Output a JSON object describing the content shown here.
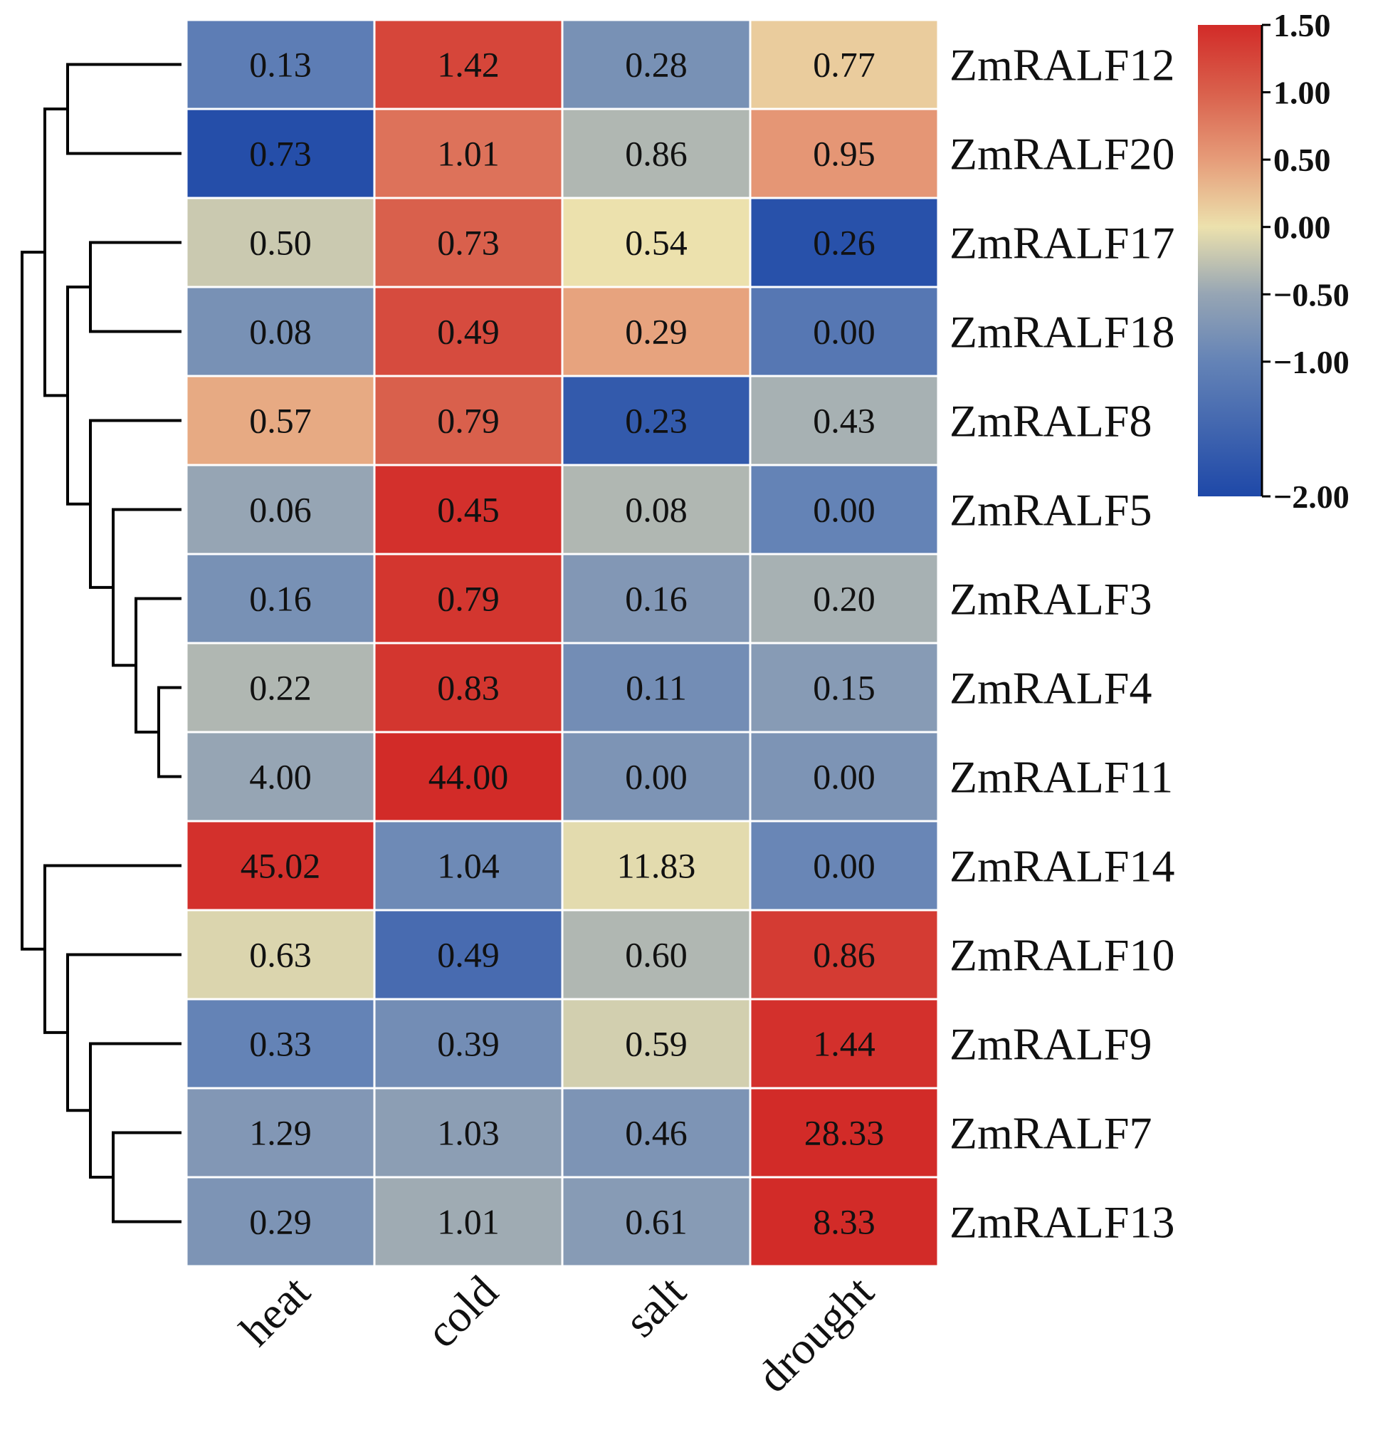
{
  "chart_data": {
    "type": "heatmap",
    "title": "",
    "xlabel": "",
    "ylabel": "",
    "columns": [
      "heat",
      "cold",
      "salt",
      "drought"
    ],
    "rows": [
      "ZmRALF12",
      "ZmRALF20",
      "ZmRALF17",
      "ZmRALF18",
      "ZmRALF8",
      "ZmRALF5",
      "ZmRALF3",
      "ZmRALF4",
      "ZmRALF11",
      "ZmRALF14",
      "ZmRALF10",
      "ZmRALF9",
      "ZmRALF7",
      "ZmRALF13"
    ],
    "cell_labels": [
      [
        "0.13",
        "1.42",
        "0.28",
        "0.77"
      ],
      [
        "0.73",
        "1.01",
        "0.86",
        "0.95"
      ],
      [
        "0.50",
        "0.73",
        "0.54",
        "0.26"
      ],
      [
        "0.08",
        "0.49",
        "0.29",
        "0.00"
      ],
      [
        "0.57",
        "0.79",
        "0.23",
        "0.43"
      ],
      [
        "0.06",
        "0.45",
        "0.08",
        "0.00"
      ],
      [
        "0.16",
        "0.79",
        "0.16",
        "0.20"
      ],
      [
        "0.22",
        "0.83",
        "0.11",
        "0.15"
      ],
      [
        "4.00",
        "44.00",
        "0.00",
        "0.00"
      ],
      [
        "45.02",
        "1.04",
        "11.83",
        "0.00"
      ],
      [
        "0.63",
        "0.49",
        "0.60",
        "0.86"
      ],
      [
        "0.33",
        "0.39",
        "0.59",
        "1.44"
      ],
      [
        "1.29",
        "1.03",
        "0.46",
        "28.33"
      ],
      [
        "0.29",
        "1.01",
        "0.61",
        "8.33"
      ]
    ],
    "color_values": [
      [
        -1.1,
        1.25,
        -0.8,
        0.15
      ],
      [
        -1.9,
        0.85,
        -0.35,
        0.55
      ],
      [
        -0.2,
        1.0,
        0.0,
        -1.85
      ],
      [
        -0.8,
        1.2,
        0.45,
        -1.2
      ],
      [
        0.4,
        1.0,
        -1.7,
        -0.4
      ],
      [
        -0.5,
        1.45,
        -0.35,
        -1.0
      ],
      [
        -0.8,
        1.4,
        -0.7,
        -0.4
      ],
      [
        -0.35,
        1.4,
        -0.85,
        -0.65
      ],
      [
        -0.5,
        1.5,
        -0.75,
        -0.75
      ],
      [
        1.45,
        -0.9,
        -0.05,
        -0.95
      ],
      [
        -0.1,
        -1.4,
        -0.35,
        1.35
      ],
      [
        -1.0,
        -0.85,
        -0.15,
        1.45
      ],
      [
        -0.7,
        -0.6,
        -0.75,
        1.5
      ],
      [
        -0.75,
        -0.45,
        -0.65,
        1.5
      ]
    ],
    "colorbar": {
      "range": [
        -2.0,
        1.5
      ],
      "ticks": [
        1.5,
        1.0,
        0.5,
        0.0,
        -0.5,
        -1.0,
        -2.0
      ],
      "tick_labels": [
        "1.50",
        "1.00",
        "0.50",
        "0.00",
        "−0.50",
        "−1.00",
        "−2.00"
      ],
      "stops": [
        {
          "value": -2.0,
          "color": "#1e48a8"
        },
        {
          "value": -1.0,
          "color": "#6483b6"
        },
        {
          "value": -0.5,
          "color": "#96a5b4"
        },
        {
          "value": 0.0,
          "color": "#ece1ad"
        },
        {
          "value": 0.5,
          "color": "#e69c79"
        },
        {
          "value": 1.0,
          "color": "#d9604c"
        },
        {
          "value": 1.5,
          "color": "#d22b28"
        }
      ]
    },
    "dendrogram": {
      "leaf_order": [
        "ZmRALF12",
        "ZmRALF20",
        "ZmRALF17",
        "ZmRALF18",
        "ZmRALF8",
        "ZmRALF5",
        "ZmRALF3",
        "ZmRALF4",
        "ZmRALF11",
        "ZmRALF14",
        "ZmRALF10",
        "ZmRALF9",
        "ZmRALF7",
        "ZmRALF13"
      ],
      "merges": [
        {
          "a": 0,
          "b": 1,
          "level": 5
        },
        {
          "a": 2,
          "b": 3,
          "level": 4
        },
        {
          "a": 7,
          "b": 8,
          "level": 1
        },
        {
          "a": 6,
          "b": "m2",
          "level": 2
        },
        {
          "a": 5,
          "b": "m3",
          "level": 3
        },
        {
          "a": 4,
          "b": "m4",
          "level": 4
        },
        {
          "a": "m1",
          "b": "m5",
          "level": 5
        },
        {
          "a": "m0",
          "b": "m6",
          "level": 6
        },
        {
          "a": 12,
          "b": 13,
          "level": 3
        },
        {
          "a": 11,
          "b": "m8",
          "level": 4
        },
        {
          "a": 10,
          "b": "m9",
          "level": 5
        },
        {
          "a": 9,
          "b": "m10",
          "level": 6
        },
        {
          "a": "m7",
          "b": "m11",
          "level": 7
        }
      ]
    }
  }
}
